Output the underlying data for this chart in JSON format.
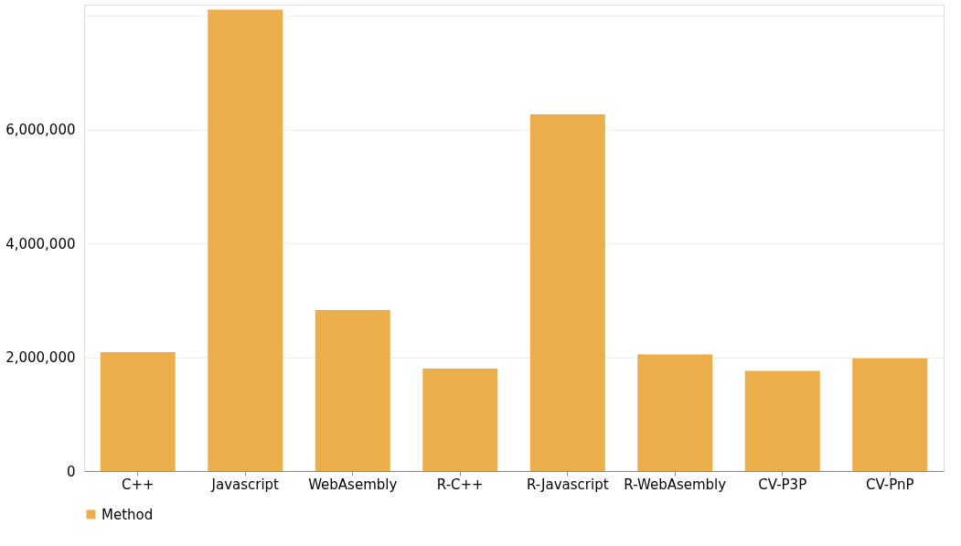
{
  "chart_data": {
    "type": "bar",
    "categories": [
      "C++",
      "Javascript",
      "WebAsembly",
      "R-C++",
      "R-Javascript",
      "R-WebAsembly",
      "CV-P3P",
      "CV-PnP"
    ],
    "series": [
      {
        "name": "Method",
        "color": "#ecae4a",
        "values": [
          2090000,
          8110000,
          2830000,
          1800000,
          6270000,
          2050000,
          1760000,
          1980000
        ]
      }
    ],
    "ylim": [
      0,
      8200000
    ],
    "yticks": [
      0,
      {
        "value": 2000000,
        "label": "2,000,000"
      },
      {
        "value": 4000000,
        "label": "4,000,000"
      },
      {
        "value": 6000000,
        "label": "6,000,000"
      },
      {
        "value": 8000000,
        "label": null
      }
    ],
    "grid": "y",
    "legend": "bottom"
  }
}
